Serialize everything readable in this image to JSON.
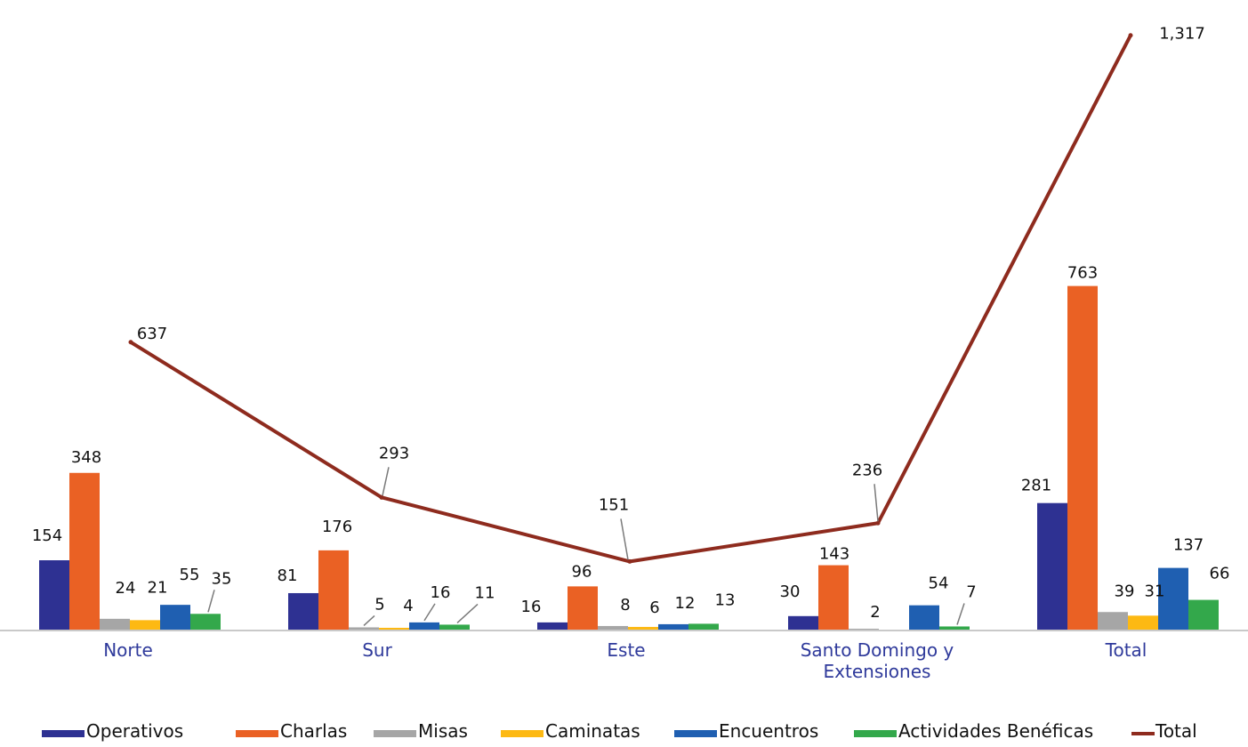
{
  "chart_data": {
    "type": "bar",
    "categories": [
      "Norte",
      "Sur",
      "Este",
      "Santo Domingo y Extensiones",
      "Total"
    ],
    "category_lines": [
      [
        "Norte"
      ],
      [
        "Sur"
      ],
      [
        "Este"
      ],
      [
        "Santo Domingo y",
        "Extensiones"
      ],
      [
        "Total"
      ]
    ],
    "series": [
      {
        "name": "Operativos",
        "values": [
          154,
          81,
          16,
          30,
          281
        ],
        "value_labels": [
          "154",
          "81",
          "16",
          "30",
          "281"
        ]
      },
      {
        "name": "Charlas",
        "values": [
          348,
          176,
          96,
          143,
          763
        ],
        "value_labels": [
          "348",
          "176",
          "96",
          "143",
          "763"
        ]
      },
      {
        "name": "Misas",
        "values": [
          24,
          5,
          8,
          2,
          39
        ],
        "value_labels": [
          "24",
          "5",
          "8",
          "2",
          "39"
        ]
      },
      {
        "name": "Caminatas",
        "values": [
          21,
          4,
          6,
          0,
          31
        ],
        "value_labels": [
          "21",
          "4",
          "6",
          "",
          "31"
        ]
      },
      {
        "name": "Encuentros",
        "values": [
          55,
          16,
          12,
          54,
          137
        ],
        "value_labels": [
          "55",
          "16",
          "12",
          "54",
          "137"
        ]
      },
      {
        "name": "Actividades Benéficas",
        "values": [
          35,
          11,
          13,
          7,
          66
        ],
        "value_labels": [
          "35",
          "11",
          "13",
          "7",
          "66"
        ]
      }
    ],
    "line_series": {
      "name": "Total",
      "values": [
        637,
        293,
        151,
        236,
        1317
      ],
      "value_labels": [
        "637",
        "293",
        "151",
        "236",
        "1,317"
      ],
      "color": "#8e2b1e"
    },
    "colors": {
      "Operativos": "#2e3192",
      "Charlas": "#ea6124",
      "Misas": "#a6a6a6",
      "Caminatas": "#fdb913",
      "Encuentros": "#1f5fb1",
      "Actividades Benéficas": "#33a84b"
    },
    "category_label_color": "#2f3a9b",
    "axis_color": "#c9c9c9",
    "legend_position": "bottom",
    "grid": false,
    "bar_ylim": [
      0,
      780
    ],
    "line_ylim": [
      0,
      1350
    ]
  }
}
